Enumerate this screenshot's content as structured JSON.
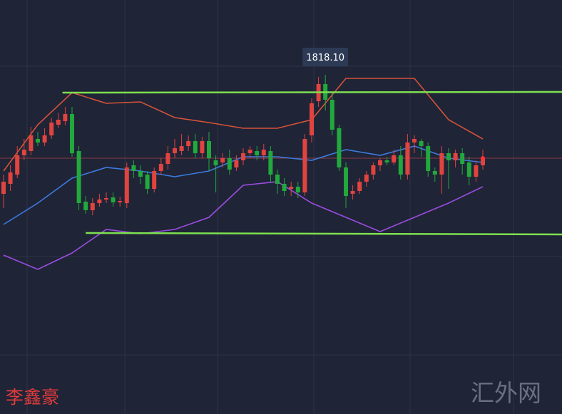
{
  "chart_data": {
    "type": "candlestick",
    "ylim": [
      1770.5,
      1828.6
    ],
    "up_color": "#e0443f",
    "down_color": "#22a83c",
    "open": [
      1801.4,
      1802.8,
      1804.1,
      1806.8,
      1807.4,
      1809.1,
      1808.6,
      1809.6,
      1811.1,
      1811.6,
      1812.6,
      1807.4,
      1800.3,
      1799.1,
      1800.1,
      1800.6,
      1800.9,
      1800.2,
      1800.1,
      1805.4,
      1804.6,
      1804.1,
      1802.1,
      1804.6,
      1805.6,
      1807.1,
      1807.4,
      1808.1,
      1808.8,
      1807.1,
      1808.8,
      1806.1,
      1805.8,
      1806.4,
      1805.1,
      1806.1,
      1807.1,
      1807.4,
      1806.8,
      1807.4,
      1804.1,
      1802.8,
      1802.1,
      1802.4,
      1801.6,
      1809.6,
      1814.4,
      1816.8,
      1814.6,
      1810.6,
      1805.1,
      1801.4,
      1801.8,
      1803.1,
      1804.1,
      1805.4,
      1806.1,
      1805.8,
      1806.8,
      1804.1,
      1808.6,
      1808.8,
      1808.1,
      1804.6,
      1804.1,
      1807.1,
      1806.1,
      1807.1,
      1805.8,
      1803.8,
      1805.4
    ],
    "high": [
      1804.1,
      1805.4,
      1808.1,
      1809.1,
      1810.8,
      1810.1,
      1810.6,
      1812.1,
      1812.8,
      1813.6,
      1813.6,
      1808.1,
      1801.1,
      1800.8,
      1801.4,
      1801.6,
      1801.6,
      1801.0,
      1805.8,
      1806.1,
      1805.4,
      1804.6,
      1805.1,
      1806.4,
      1808.1,
      1809.1,
      1809.8,
      1809.6,
      1809.8,
      1809.4,
      1810.1,
      1806.8,
      1807.1,
      1807.6,
      1806.8,
      1807.8,
      1808.1,
      1808.1,
      1808.4,
      1808.1,
      1804.8,
      1803.6,
      1803.1,
      1803.1,
      1809.8,
      1814.8,
      1817.8,
      1818.1,
      1815.6,
      1811.1,
      1805.8,
      1802.6,
      1803.6,
      1804.6,
      1805.8,
      1806.4,
      1806.6,
      1807.6,
      1808.1,
      1809.8,
      1809.6,
      1809.1,
      1808.6,
      1805.1,
      1808.1,
      1807.8,
      1807.6,
      1807.8,
      1806.6,
      1806.1,
      1807.6
    ],
    "low": [
      1799.4,
      1801.8,
      1803.6,
      1806.1,
      1806.8,
      1808.1,
      1808.1,
      1809.1,
      1810.6,
      1811.0,
      1806.6,
      1799.1,
      1798.6,
      1798.4,
      1799.6,
      1800.1,
      1799.6,
      1799.6,
      1799.4,
      1803.6,
      1802.8,
      1801.4,
      1801.6,
      1804.1,
      1804.8,
      1806.4,
      1806.8,
      1807.4,
      1806.4,
      1806.4,
      1804.6,
      1801.6,
      1805.1,
      1804.1,
      1804.6,
      1805.4,
      1806.4,
      1806.1,
      1806.1,
      1803.1,
      1801.4,
      1801.1,
      1801.1,
      1800.8,
      1801.1,
      1808.6,
      1813.6,
      1813.1,
      1809.6,
      1804.6,
      1799.4,
      1800.6,
      1801.4,
      1802.4,
      1803.4,
      1804.6,
      1805.4,
      1805.4,
      1803.4,
      1803.4,
      1807.1,
      1806.6,
      1803.8,
      1803.1,
      1801.4,
      1802.1,
      1805.1,
      1804.1,
      1802.6,
      1803.1,
      1804.8
    ],
    "close": [
      1803.1,
      1804.4,
      1806.8,
      1807.6,
      1809.6,
      1808.6,
      1809.6,
      1811.4,
      1811.8,
      1812.6,
      1807.1,
      1800.1,
      1799.1,
      1800.1,
      1800.6,
      1800.8,
      1800.2,
      1800.4,
      1805.1,
      1804.6,
      1803.8,
      1802.1,
      1804.6,
      1805.6,
      1807.1,
      1807.8,
      1808.1,
      1808.8,
      1807.1,
      1808.8,
      1806.4,
      1805.4,
      1806.4,
      1804.8,
      1806.1,
      1807.1,
      1807.6,
      1806.8,
      1807.6,
      1804.1,
      1802.8,
      1801.8,
      1802.4,
      1801.6,
      1809.1,
      1814.1,
      1816.8,
      1814.6,
      1810.4,
      1805.1,
      1801.1,
      1801.8,
      1803.1,
      1804.1,
      1805.4,
      1806.1,
      1805.8,
      1806.8,
      1804.1,
      1808.6,
      1809.1,
      1808.1,
      1804.6,
      1804.1,
      1807.1,
      1806.1,
      1807.1,
      1805.6,
      1803.8,
      1805.4,
      1806.4
    ],
    "bands": [
      {
        "color": "#d5533a",
        "x": [
          0,
          5,
          10,
          15,
          20,
          25,
          30,
          35,
          40,
          45,
          50,
          55,
          60,
          65,
          70
        ],
        "values": [
          1804.6,
          1811.1,
          1815.6,
          1814.1,
          1814.3,
          1812.1,
          1811.4,
          1810.6,
          1810.6,
          1811.8,
          1817.6,
          1817.6,
          1817.6,
          1811.8,
          1809.1
        ]
      },
      {
        "color": "#3d7be0",
        "x": [
          0,
          5,
          10,
          15,
          20,
          25,
          30,
          35,
          40,
          45,
          50,
          55,
          60,
          65,
          70
        ],
        "values": [
          1797.1,
          1800.1,
          1803.6,
          1805.1,
          1804.6,
          1803.8,
          1804.6,
          1806.6,
          1806.6,
          1806.1,
          1807.6,
          1806.8,
          1808.1,
          1806.4,
          1805.8
        ]
      },
      {
        "color": "#9a4de0",
        "x": [
          0,
          5,
          10,
          15,
          20,
          25,
          30,
          35,
          40,
          45,
          50,
          55,
          60,
          65,
          70
        ],
        "values": [
          1792.8,
          1790.8,
          1793.1,
          1796.4,
          1795.8,
          1796.4,
          1798.1,
          1802.6,
          1803.1,
          1800.1,
          1798.1,
          1796.1,
          1798.1,
          1800.1,
          1802.4
        ]
      }
    ],
    "trendlines": [
      {
        "color": "#7ee04f",
        "x": [
          8.6,
          81.6
        ],
        "values": [
          1815.6,
          1815.7
        ]
      },
      {
        "color": "#7ee04f",
        "x": [
          12,
          81.6
        ],
        "values": [
          1795.9,
          1795.7
        ]
      }
    ],
    "annotation": {
      "text": "1818.10",
      "value": 1818.1,
      "index": 47
    },
    "watermark_left": "李鑫豪",
    "watermark_right": "汇外网"
  }
}
